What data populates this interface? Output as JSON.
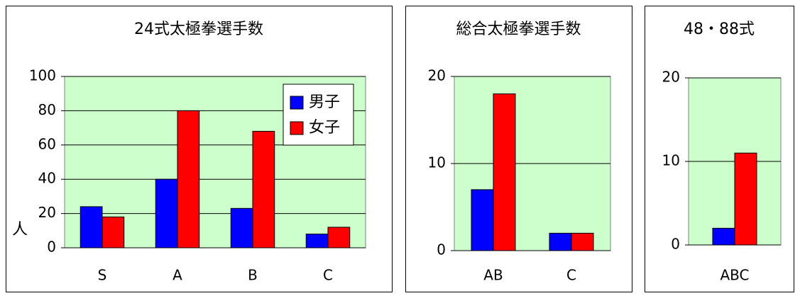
{
  "chart_data": [
    {
      "type": "bar",
      "title": "24式太極拳選手数",
      "ylabel": "人",
      "categories": [
        "S",
        "A",
        "B",
        "C"
      ],
      "series": [
        {
          "name": "男子",
          "color": "#0000ff",
          "values": [
            24,
            40,
            23,
            8
          ]
        },
        {
          "name": "女子",
          "color": "#ff0000",
          "values": [
            18,
            80,
            68,
            12
          ]
        }
      ],
      "ylim": [
        0,
        100
      ],
      "yticks": [
        0,
        20,
        40,
        60,
        80,
        100
      ],
      "grid": true,
      "legend": "top-right"
    },
    {
      "type": "bar",
      "title": "総合太極拳選手数",
      "categories": [
        "AB",
        "C"
      ],
      "series": [
        {
          "color": "#0000ff",
          "values": [
            7,
            2
          ]
        },
        {
          "color": "#ff0000",
          "values": [
            18,
            2
          ]
        }
      ],
      "ylim": [
        0,
        20
      ],
      "yticks": [
        0,
        10,
        20
      ],
      "grid": true
    },
    {
      "type": "bar",
      "title": "48・88式",
      "categories": [
        "ABC"
      ],
      "series": [
        {
          "color": "#0000ff",
          "values": [
            2
          ]
        },
        {
          "color": "#ff0000",
          "values": [
            11
          ]
        }
      ],
      "ylim": [
        0,
        20
      ],
      "yticks": [
        0,
        10,
        20
      ],
      "grid": true
    }
  ]
}
